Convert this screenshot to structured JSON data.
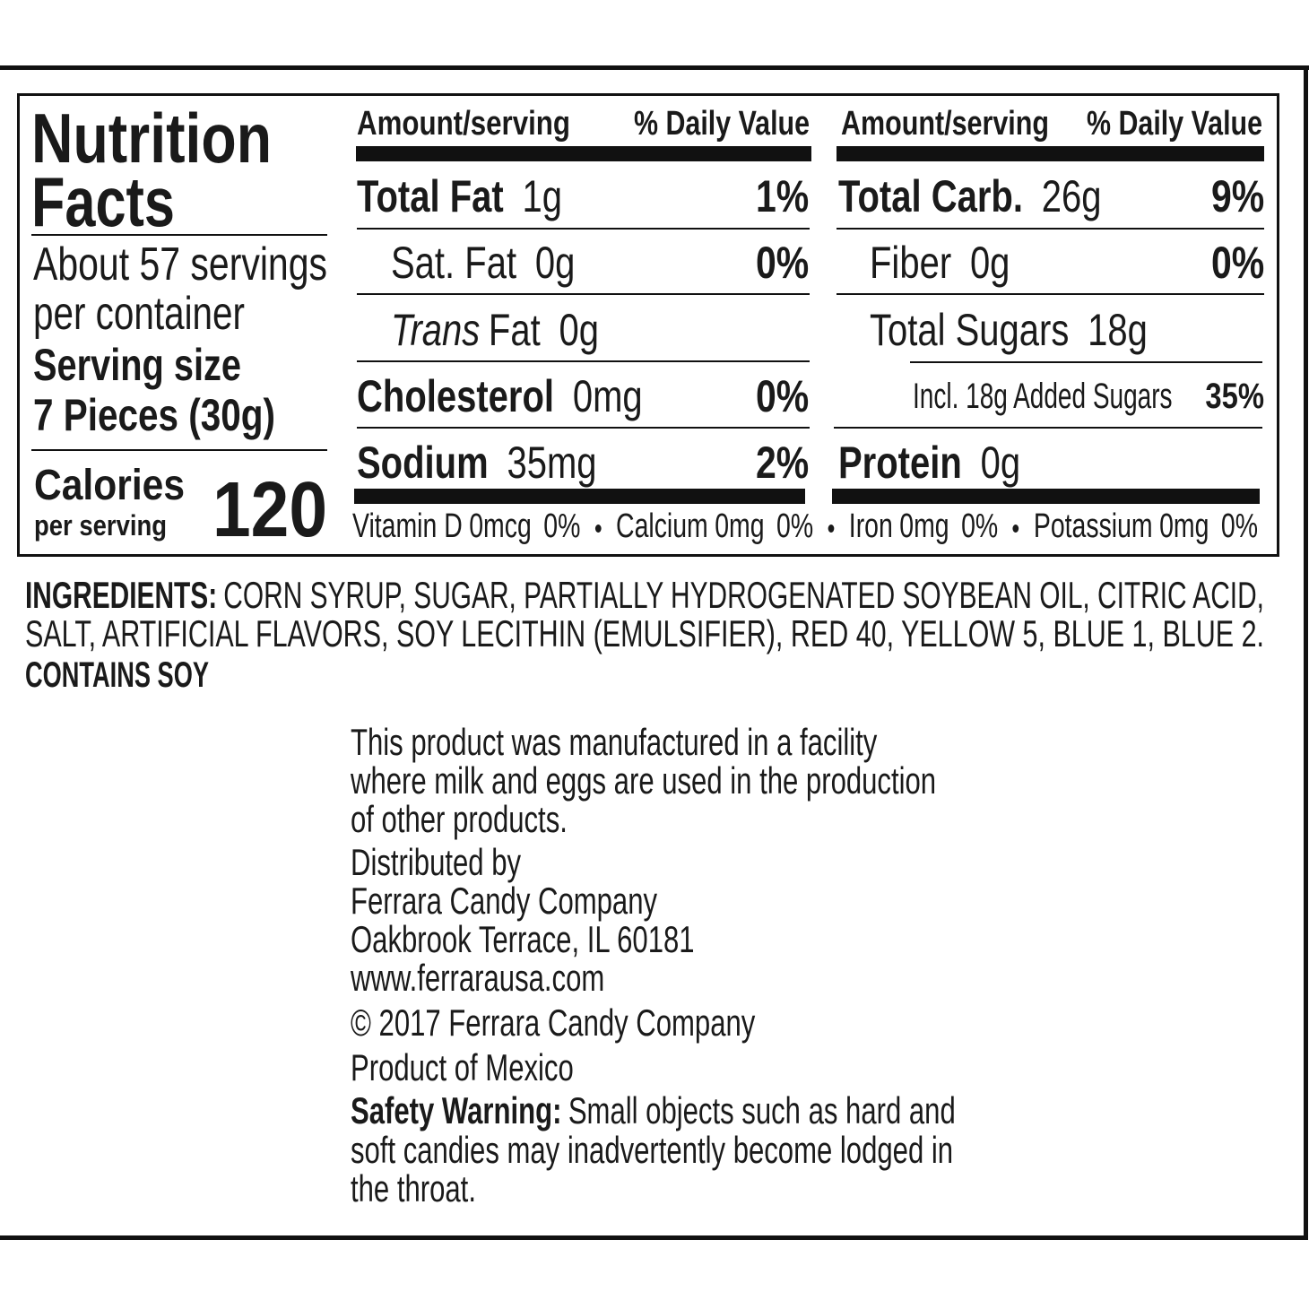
{
  "nutrition_facts": {
    "title_lines": [
      "Nutrition",
      "Facts"
    ],
    "servings_lines": [
      "About 57 servings",
      "per container"
    ],
    "serving_size_label": "Serving size",
    "serving_size": "7 Pieces (30g)",
    "calories_label": "Calories",
    "calories_unit": "per serving",
    "calories": 120,
    "column_header": {
      "amount": "Amount/serving",
      "daily_value": "% Daily Value"
    },
    "left_rows": [
      {
        "name": "Total Fat",
        "amount": "1g",
        "daily_value": "1%",
        "level": 0
      },
      {
        "name": "Sat. Fat",
        "amount": "0g",
        "daily_value": "0%",
        "level": 1
      },
      {
        "italic_prefix": "Trans",
        "name": "Fat",
        "amount": "0g",
        "level": 1
      },
      {
        "name": "Cholesterol",
        "amount": "0mg",
        "daily_value": "0%",
        "level": 0
      },
      {
        "name": "Sodium",
        "amount": "35mg",
        "daily_value": "2%",
        "level": 0
      }
    ],
    "right_rows": [
      {
        "name": "Total Carb.",
        "amount": "26g",
        "daily_value": "9%",
        "level": 0
      },
      {
        "name": "Fiber",
        "amount": "0g",
        "daily_value": "0%",
        "level": 1
      },
      {
        "name": "Total Sugars",
        "amount": "18g",
        "level": 1
      },
      {
        "name": "Incl. 18g Added Sugars",
        "daily_value": "35%",
        "level": 2
      },
      {
        "name": "Protein",
        "amount": "0g",
        "level": 0
      }
    ],
    "vitamins": [
      {
        "name": "Vitamin D",
        "amount": "0mcg",
        "daily_value": "0%"
      },
      {
        "name": "Calcium",
        "amount": "0mg",
        "daily_value": "0%"
      },
      {
        "name": "Iron",
        "amount": "0mg",
        "daily_value": "0%"
      },
      {
        "name": "Potassium",
        "amount": "0mg",
        "daily_value": "0%"
      }
    ]
  },
  "ingredients": {
    "label": "INGREDIENTS:",
    "lines": [
      "CORN SYRUP, SUGAR, PARTIALLY HYDROGENATED SOYBEAN OIL, CITRIC ACID,",
      "SALT, ARTIFICIAL FLAVORS, SOY LECITHIN (EMULSIFIER), RED 40, YELLOW 5, BLUE 1, BLUE 2."
    ],
    "allergens": "CONTAINS SOY"
  },
  "notes": {
    "facility_lines": [
      "This product was manufactured in a facility",
      "where milk and eggs are used in the production",
      "of other products."
    ],
    "distributor_lines": [
      "Distributed by",
      "Ferrara Candy Company",
      "Oakbrook Terrace, IL 60181",
      "www.ferrarausa.com"
    ],
    "copyright": "© 2017 Ferrara Candy Company",
    "origin": "Product of Mexico",
    "safety_label": "Safety Warning:",
    "safety_lines": [
      "Small objects such as hard and",
      "soft candies may inadvertently become lodged in",
      "the throat."
    ]
  }
}
